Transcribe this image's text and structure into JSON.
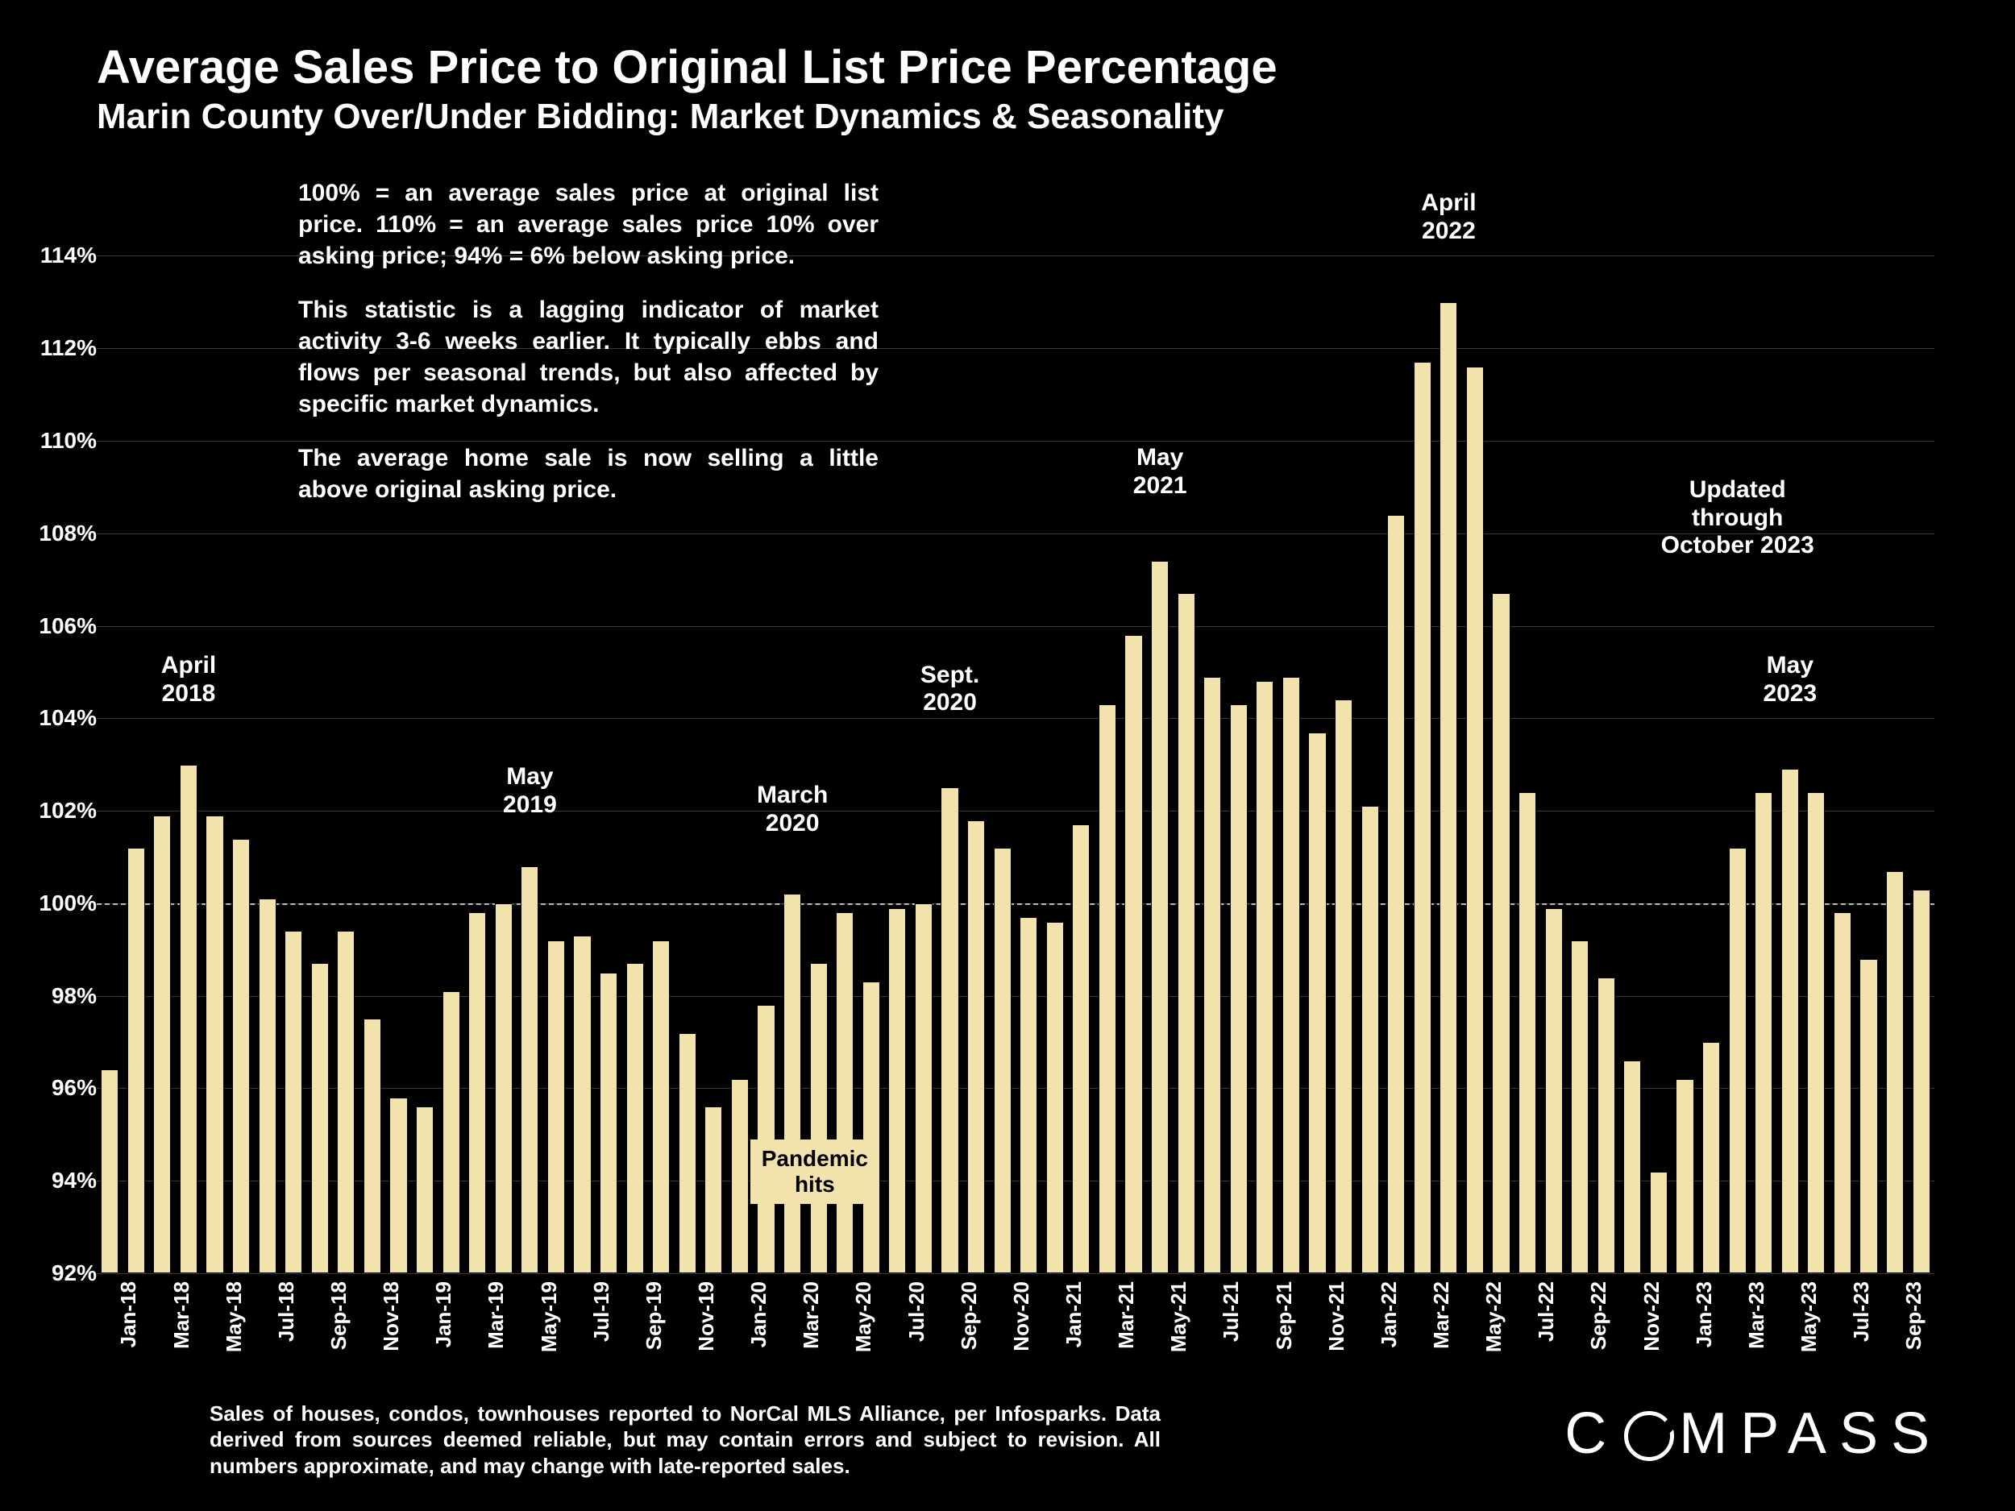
{
  "title": "Average Sales Price to Original List Price Percentage",
  "subtitle": "Marin County Over/Under Bidding: Market Dynamics & Seasonality",
  "explain": {
    "p1": "100% = an average sales price at original list price. 110% = an average sales price 10% over asking price; 94% = 6% below asking price.",
    "p2": "This statistic is a lagging indicator of market activity 3-6 weeks earlier. It typically ebbs and flows per seasonal trends, but also affected by specific market dynamics.",
    "p3": "The average home sale is now selling a little above original asking price."
  },
  "footnote": "Sales of houses, condos, townhouses reported to NorCal MLS Alliance, per Infosparks. Data derived from sources deemed reliable, but may contain errors and subject to revision. All numbers approximate, and may change with late-reported sales.",
  "logo_text": "C  MPASS",
  "chart": {
    "type": "bar",
    "background_color": "#000000",
    "bar_color": "#f2e3ac",
    "grid_color": "rgba(255,255,255,0.22)",
    "text_color": "#ffffff",
    "ylim": [
      92,
      115
    ],
    "yticks": [
      92,
      94,
      96,
      98,
      100,
      102,
      104,
      106,
      108,
      110,
      112,
      114
    ],
    "ytick_labels": [
      "92%",
      "94%",
      "96%",
      "98%",
      "100%",
      "102%",
      "104%",
      "106%",
      "108%",
      "110%",
      "112%",
      "114%"
    ],
    "ref_line": 100,
    "bar_width_ratio": 0.68,
    "xtick_every": 2,
    "categories": [
      "Jan-18",
      "Feb-18",
      "Mar-18",
      "Apr-18",
      "May-18",
      "Jun-18",
      "Jul-18",
      "Aug-18",
      "Sep-18",
      "Oct-18",
      "Nov-18",
      "Dec-18",
      "Jan-19",
      "Feb-19",
      "Mar-19",
      "Apr-19",
      "May-19",
      "Jun-19",
      "Jul-19",
      "Aug-19",
      "Sep-19",
      "Oct-19",
      "Nov-19",
      "Dec-19",
      "Jan-20",
      "Feb-20",
      "Mar-20",
      "Apr-20",
      "May-20",
      "Jun-20",
      "Jul-20",
      "Aug-20",
      "Sep-20",
      "Oct-20",
      "Nov-20",
      "Dec-20",
      "Jan-21",
      "Feb-21",
      "Mar-21",
      "Apr-21",
      "May-21",
      "Jun-21",
      "Jul-21",
      "Aug-21",
      "Sep-21",
      "Oct-21",
      "Nov-21",
      "Dec-21",
      "Jan-22",
      "Feb-22",
      "Mar-22",
      "Apr-22",
      "May-22",
      "Jun-22",
      "Jul-22",
      "Aug-22",
      "Sep-22",
      "Oct-22",
      "Nov-22",
      "Dec-22",
      "Jan-23",
      "Feb-23",
      "Mar-23",
      "Apr-23",
      "May-23",
      "Jun-23",
      "Jul-23",
      "Aug-23",
      "Sep-23",
      "Oct-23"
    ],
    "values": [
      96.4,
      101.2,
      101.9,
      103.0,
      101.9,
      101.4,
      100.1,
      99.4,
      98.7,
      99.4,
      97.5,
      95.8,
      95.6,
      98.1,
      99.8,
      100.0,
      100.8,
      99.2,
      99.3,
      98.5,
      98.7,
      99.2,
      97.2,
      95.6,
      96.2,
      97.8,
      100.2,
      98.7,
      99.8,
      98.3,
      99.9,
      100.0,
      102.5,
      101.8,
      101.2,
      99.7,
      99.6,
      101.7,
      104.3,
      105.8,
      107.4,
      106.7,
      104.9,
      104.3,
      104.8,
      104.9,
      103.7,
      104.4,
      102.1,
      108.4,
      111.7,
      113.0,
      111.6,
      106.7,
      102.4,
      99.9,
      99.2,
      98.4,
      96.6,
      94.2,
      96.2,
      97.0,
      101.2,
      102.4,
      102.9,
      102.4,
      99.8,
      98.8,
      100.7,
      100.3
    ],
    "annotations": [
      {
        "text_l1": "April",
        "text_l2": "2018",
        "x_idx": 3,
        "y": 104.8
      },
      {
        "text_l1": "May",
        "text_l2": "2019",
        "x_idx": 16,
        "y": 102.4
      },
      {
        "text_l1": "March",
        "text_l2": "2020",
        "x_idx": 26,
        "y": 102.0
      },
      {
        "text_l1": "Sept.",
        "text_l2": "2020",
        "x_idx": 32,
        "y": 104.6
      },
      {
        "text_l1": "May",
        "text_l2": "2021",
        "x_idx": 40,
        "y": 109.3
      },
      {
        "text_l1": "April",
        "text_l2": "2022",
        "x_idx": 51,
        "y": 114.8
      },
      {
        "text_l1": "Updated through",
        "text_l2": "October 2023",
        "x_idx": 62,
        "y": 108.6
      },
      {
        "text_l1": "May",
        "text_l2": "2023",
        "x_idx": 64,
        "y": 104.8
      }
    ],
    "pandemic_box": {
      "text_l1": "Pandemic",
      "text_l2": "hits",
      "x_idx": 27,
      "y": 94.9
    }
  }
}
